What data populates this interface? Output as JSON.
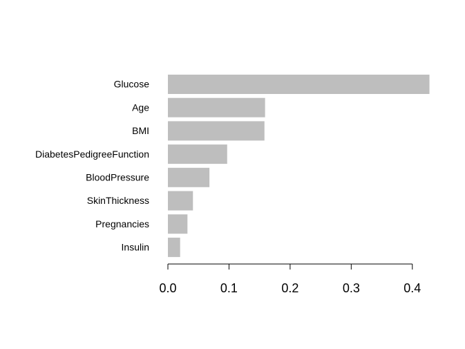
{
  "chart_data": {
    "type": "hbar",
    "categories": [
      "Glucose",
      "Age",
      "BMI",
      "DiabetesPedigreeFunction",
      "BloodPressure",
      "SkinThickness",
      "Pregnancies",
      "Insulin"
    ],
    "values": [
      0.428,
      0.159,
      0.158,
      0.097,
      0.068,
      0.041,
      0.032,
      0.02
    ],
    "color": "#bebebe",
    "xlim": [
      0,
      0.45
    ],
    "xticks": [
      {
        "value": 0,
        "label": "0.0"
      },
      0.1,
      0.2,
      0.3,
      0.4
    ]
  }
}
